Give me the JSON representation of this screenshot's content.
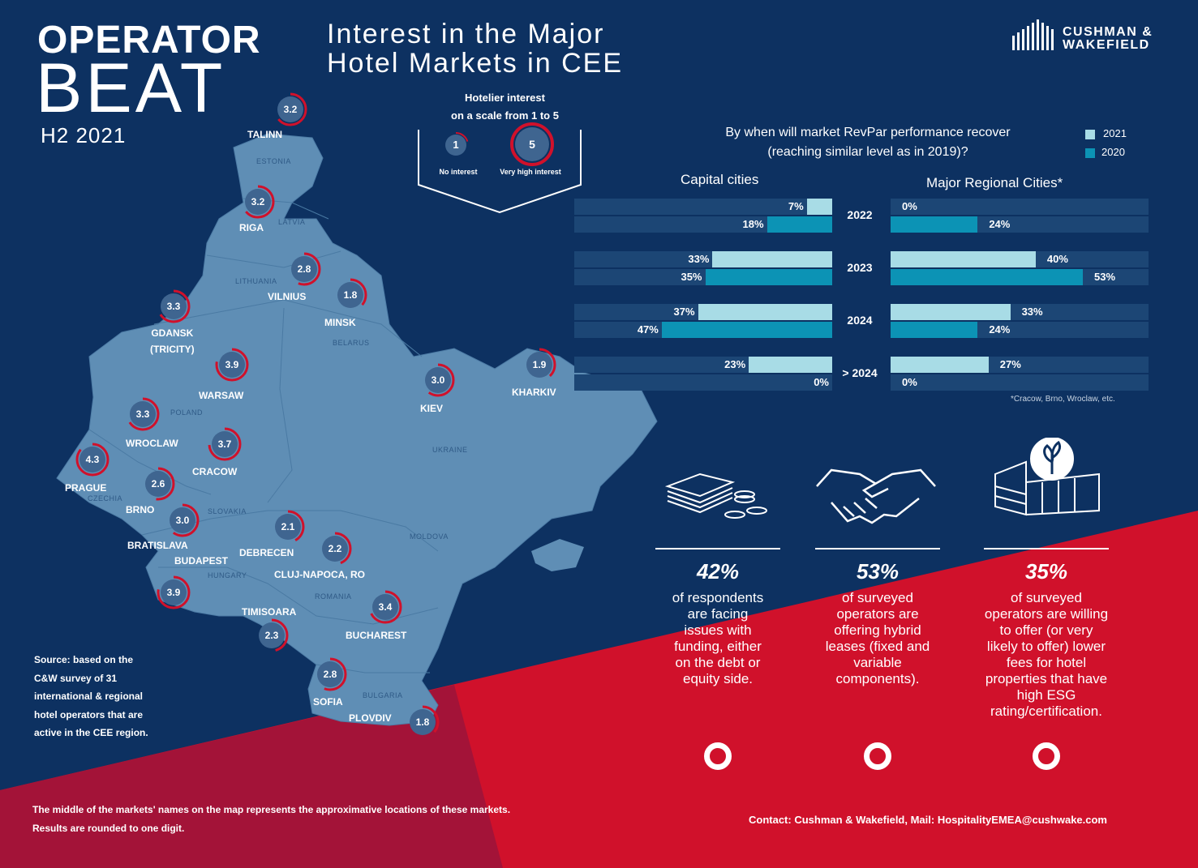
{
  "header": {
    "title_line1": "OPERATOR",
    "title_line2": "BEAT",
    "period": "H2 2021",
    "main_title": "Interest in the Major\nHotel Markets in CEE",
    "logo_text": "CUSHMAN &\nWAKEFIELD"
  },
  "scale_legend": {
    "title": "Hotelier interest\non a scale from 1 to 5",
    "low_value": "1",
    "low_label": "No interest",
    "high_value": "5",
    "high_label": "Very high interest"
  },
  "map": {
    "markers": [
      {
        "city": "TALINN",
        "value": "3.2"
      },
      {
        "city": "RIGA",
        "value": "3.2"
      },
      {
        "city": "VILNIUS",
        "value": "2.8"
      },
      {
        "city": "MINSK",
        "value": "1.8"
      },
      {
        "city": "GDANSK\n(TRICITY)",
        "value": "3.3"
      },
      {
        "city": "WARSAW",
        "value": "3.9"
      },
      {
        "city": "WROCLAW",
        "value": "3.3"
      },
      {
        "city": "CRACOW",
        "value": "3.7"
      },
      {
        "city": "PRAGUE",
        "value": "4.3"
      },
      {
        "city": "BRNO",
        "value": "2.6"
      },
      {
        "city": "BRATISLAVA",
        "value": "3.0"
      },
      {
        "city": "BUDAPEST",
        "value": "3.9"
      },
      {
        "city": "DEBRECEN",
        "value": "2.1"
      },
      {
        "city": "CLUJ-NAPOCA, RO",
        "value": "2.2"
      },
      {
        "city": "TIMISOARA",
        "value": "2.3"
      },
      {
        "city": "BUCHAREST",
        "value": "3.4"
      },
      {
        "city": "SOFIA",
        "value": "2.8"
      },
      {
        "city": "PLOVDIV",
        "value": "1.8"
      },
      {
        "city": "KIEV",
        "value": "3.0"
      },
      {
        "city": "KHARKIV",
        "value": "1.9"
      }
    ],
    "countries": [
      "ESTONIA",
      "LATVIA",
      "LITHUANIA",
      "BELARUS",
      "POLAND",
      "CZECHIA",
      "SLOVAKIA",
      "HUNGARY",
      "ROMANIA",
      "MOLDOVA",
      "UKRAINE",
      "BULGARIA"
    ]
  },
  "colors": {
    "background": "#0d3161",
    "map_fill": "#5f8eb5",
    "red": "#d0112b",
    "dark_red": "#a31338",
    "bar_2021": "#a8dce6",
    "bar_2020": "#0c93b5",
    "bar_track": "#1c4675"
  },
  "chart_data": {
    "type": "bar",
    "title": "By when will market RevPar performance recover\n(reaching similar level as in 2019)?",
    "categories": [
      "2022",
      "2023",
      "2024",
      "> 2024"
    ],
    "legend": [
      "2021",
      "2020"
    ],
    "legend_placement": "top-right",
    "panels": [
      {
        "name": "Capital cities",
        "series": [
          {
            "name": "2021",
            "values": [
              7,
              33,
              37,
              23
            ]
          },
          {
            "name": "2020",
            "values": [
              18,
              35,
              47,
              0
            ]
          }
        ]
      },
      {
        "name": "Major Regional Cities*",
        "series": [
          {
            "name": "2021",
            "values": [
              0,
              40,
              33,
              27
            ]
          },
          {
            "name": "2020",
            "values": [
              24,
              53,
              24,
              0
            ]
          }
        ]
      }
    ],
    "footnote": "*Cracow, Brno, Wroclaw, etc."
  },
  "stats": [
    {
      "pct": "42%",
      "text": "of respondents\nare facing\nissues with\nfunding, either\non the debt or\nequity side.",
      "icon": "money-icon"
    },
    {
      "pct": "53%",
      "text": "of surveyed\noperators are\noffering hybrid\nleases (fixed and\nvariable\ncomponents).",
      "icon": "handshake-icon"
    },
    {
      "pct": "35%",
      "text": "of surveyed\noperators are willing\nto offer (or very\nlikely to offer) lower\nfees for hotel\nproperties that have\nhigh ESG\nrating/certification.",
      "icon": "green-building-icon"
    }
  ],
  "footer": {
    "source": "Source: based on the\nC&W survey of 31\ninternational & regional\nhotel operators that are\nactive in the CEE region.",
    "note": "The  middle of the markets' names on the map represents the approximative locations of these markets.\nResults are rounded to one digit.",
    "contact": "Contact: Cushman & Wakefield, Mail: HospitalityEMEA@cushwake.com"
  }
}
